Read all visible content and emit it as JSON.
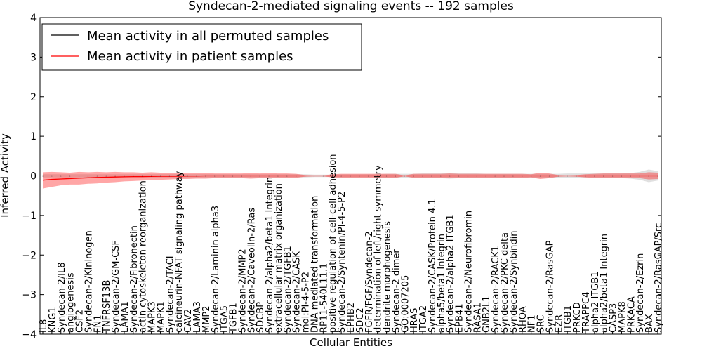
{
  "chart_data": {
    "type": "line",
    "title": "Syndecan-2-mediated signaling events -- 192 samples",
    "xlabel": "Cellular Entities",
    "ylabel": "Inferred Activity",
    "ylim": [
      -4,
      4
    ],
    "yticks": [
      "4",
      "3",
      "2",
      "1",
      "0",
      "−1",
      "−2",
      "−3",
      "−4"
    ],
    "legend": {
      "placement": "top-left",
      "entries": [
        {
          "label": "Mean activity in all permuted samples",
          "color": "#000000"
        },
        {
          "label": "Mean activity in patient samples",
          "color": "#ff0000"
        }
      ]
    },
    "categories": [
      "IL8",
      "KNG1",
      "Syndecan-2/IL8",
      "angiogenesis",
      "CSF2",
      "Syndecan-2/Kininogen",
      "FN1",
      "TNFRSF13B",
      "Syndecan-2/GM-CSF",
      "LAMA1",
      "Syndecan-2/Fibronectin",
      "actin cytoskeleton reorganization",
      "MAPK3",
      "MAPK1",
      "Syndecan-2/TACI",
      "calcineurin-NFAT signaling pathway",
      "CAV2",
      "LAMA3",
      "MMP2",
      "Syndecan-2/Laminin alpha3",
      "ITGA5",
      "TGFB1",
      "Syndecan-2/MMP2",
      "Syndecan-2/Caveolin-2/Ras",
      "SDCBP",
      "Syndecan-2/alpha2/beta1 Integrin",
      "extracellular matrix organization",
      "Syndecan-2/TGFB1",
      "Syndecan-2/CASK",
      "mol:PI-4-5-P2",
      "DNA mediated transformation",
      "RP11-540L11.1",
      "positive regulation of cell-cell adhesion",
      "Syndecan-2/Syntenin/PI-4-5-P2",
      "EPHB2",
      "SDC2",
      "FGFR/FGF/Syndecan-2",
      "determination of left/right symmetry",
      "dendrite morphogenesis",
      "Syndecan-2 dimer",
      "GO:0007205",
      "HRAS",
      "ITGA2",
      "Syndecan-2/CASK/Protein 4.1",
      "alpha5/beta1 Integrin",
      "Syndecan-2/alpha2 ITGB1",
      "EPB41",
      "Syndecan-2/Neurofibromin",
      "RASA1",
      "GNB2L1",
      "Syndecan-2/RACK1",
      "Syndecan-2/PKC delta",
      "Syndecan-2/Synbindin",
      "RHOA",
      "NF1",
      "SRC",
      "Syndecan-2/RasGAP",
      "EZR",
      "ITGB1",
      "PRKCD",
      "TRAPPC4",
      "alpha2 ITGB1",
      "alpha2/beta1 Integrin",
      "CASP3",
      "MAPK8",
      "PRKACA",
      "Syndecan-2/Ezrin",
      "BAX",
      "Syndecan-2/RasGAP/Src"
    ],
    "series": [
      {
        "name": "Mean activity in all permuted samples",
        "color": "#000000",
        "values": [
          0,
          0,
          0,
          0,
          0,
          0,
          0,
          0,
          0,
          0,
          0,
          0,
          0,
          0,
          0,
          0,
          0,
          0,
          0,
          0,
          0,
          0,
          0,
          0,
          0,
          0,
          0,
          0,
          0,
          0,
          0,
          0,
          0,
          0,
          0,
          0,
          0,
          0,
          0,
          0,
          0,
          0,
          0,
          0,
          0,
          0,
          0,
          0,
          0,
          0,
          0,
          0,
          0,
          0,
          0,
          0,
          0,
          0,
          0,
          0,
          0,
          0,
          0,
          0,
          0,
          0,
          0,
          0,
          0
        ],
        "band_half_width": [
          0.04,
          0.04,
          0.04,
          0.04,
          0.04,
          0.04,
          0.04,
          0.04,
          0.04,
          0.04,
          0.04,
          0.04,
          0.04,
          0.04,
          0.04,
          0.04,
          0.04,
          0.04,
          0.04,
          0.04,
          0.04,
          0.04,
          0.04,
          0.04,
          0.04,
          0.04,
          0.04,
          0.04,
          0.04,
          0.04,
          0.03,
          0.03,
          0.03,
          0.04,
          0.04,
          0.04,
          0.04,
          0.04,
          0.05,
          0.05,
          0.05,
          0.05,
          0.06,
          0.06,
          0.06,
          0.07,
          0.06,
          0.06,
          0.06,
          0.05,
          0.05,
          0.05,
          0.05,
          0.05,
          0.05,
          0.05,
          0.05,
          0.05,
          0.06,
          0.06,
          0.06,
          0.06,
          0.06,
          0.06,
          0.06,
          0.07,
          0.1,
          0.16,
          0.12
        ]
      },
      {
        "name": "Mean activity in patient samples",
        "color": "#ff0000",
        "values": [
          -0.11,
          -0.09,
          -0.08,
          -0.07,
          -0.06,
          -0.05,
          -0.04,
          -0.035,
          -0.03,
          -0.025,
          -0.02,
          -0.02,
          -0.015,
          -0.01,
          -0.01,
          -0.01,
          -0.005,
          -0.005,
          0,
          0,
          0,
          0,
          0,
          0,
          0,
          0,
          0,
          0,
          0,
          0,
          0,
          0,
          0,
          0,
          0,
          0,
          0,
          0,
          0,
          0,
          0,
          0,
          0,
          0,
          0,
          0,
          0,
          0,
          0,
          0,
          0,
          0,
          0,
          0,
          0,
          0,
          0,
          0,
          0,
          0,
          0,
          0,
          0,
          0,
          0,
          0,
          0,
          0,
          0
        ],
        "band_upper": [
          0.09,
          0.1,
          0.09,
          0.08,
          0.1,
          0.09,
          0.1,
          0.09,
          0.1,
          0.09,
          0.09,
          0.08,
          0.09,
          0.08,
          0.08,
          0.07,
          0.07,
          0.07,
          0.07,
          0.06,
          0.06,
          0.06,
          0.06,
          0.07,
          0.06,
          0.07,
          0.06,
          0.06,
          0.05,
          0.02,
          0.01,
          0.01,
          0.04,
          0.05,
          0.05,
          0.05,
          0.05,
          0.05,
          0.05,
          0.05,
          0.01,
          0.05,
          0.05,
          0.05,
          0.05,
          0.06,
          0.05,
          0.05,
          0.05,
          0.05,
          0.05,
          0.05,
          0.05,
          0.05,
          0.04,
          0.08,
          0.06,
          0.02,
          0.01,
          0.02,
          0.04,
          0.05,
          0.06,
          0.06,
          0.06,
          0.06,
          0.06,
          0.09,
          0.08
        ],
        "band_lower": [
          -0.32,
          -0.28,
          -0.24,
          -0.22,
          -0.22,
          -0.2,
          -0.19,
          -0.17,
          -0.16,
          -0.14,
          -0.13,
          -0.12,
          -0.11,
          -0.1,
          -0.09,
          -0.08,
          -0.08,
          -0.07,
          -0.07,
          -0.06,
          -0.06,
          -0.06,
          -0.06,
          -0.07,
          -0.06,
          -0.06,
          -0.06,
          -0.06,
          -0.05,
          -0.02,
          -0.01,
          -0.01,
          -0.04,
          -0.05,
          -0.05,
          -0.05,
          -0.05,
          -0.05,
          -0.05,
          -0.05,
          -0.01,
          -0.05,
          -0.05,
          -0.05,
          -0.05,
          -0.06,
          -0.05,
          -0.05,
          -0.05,
          -0.05,
          -0.05,
          -0.05,
          -0.05,
          -0.05,
          -0.04,
          -0.08,
          -0.06,
          -0.02,
          -0.01,
          -0.02,
          -0.04,
          -0.05,
          -0.06,
          -0.06,
          -0.06,
          -0.06,
          -0.06,
          -0.09,
          -0.08
        ]
      }
    ],
    "grid": false
  }
}
